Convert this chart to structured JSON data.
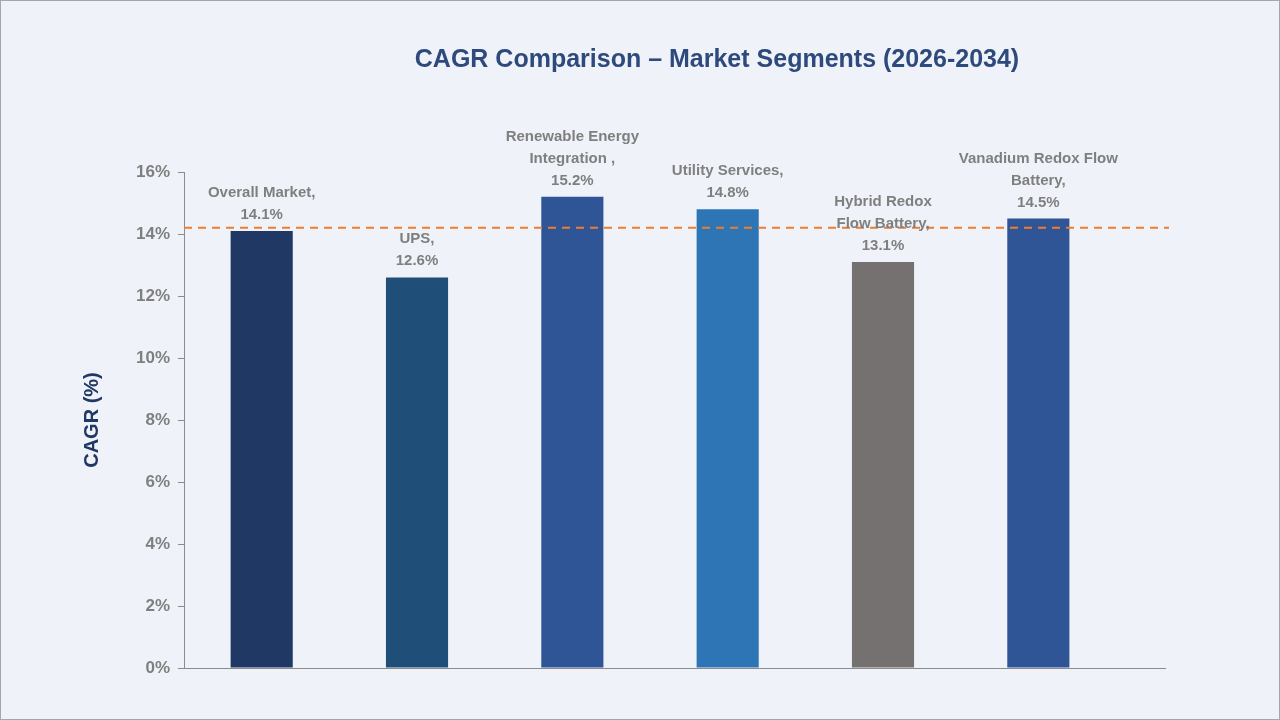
{
  "chart_data": {
    "type": "bar",
    "title": "CAGR Comparison – Market Segments (2026-2034)",
    "ylabel": "CAGR (%)",
    "categories": [
      null,
      null,
      null,
      null,
      null,
      null
    ],
    "values": [
      14.1,
      12.6,
      15.2,
      14.8,
      13.1,
      14.5
    ],
    "colors": [
      "#203864",
      "#1f4e79",
      "#2f5597",
      "#2e75b6",
      "#767171",
      "#2f5597"
    ],
    "value_labels": [
      "Overall Market,\n14.1%",
      "UPS,\n12.6%",
      "Renewable Energy\nIntegration ,\n15.2%",
      "Utility Services,\n14.8%",
      "Hybrid Redox\nFlow Battery,\n13.1%",
      "Vanadium Redox Flow\nBattery,\n14.5%"
    ],
    "ylim": [
      0,
      16
    ],
    "yticks": [
      {
        "value": 0,
        "label": "0%"
      },
      {
        "value": 2,
        "label": "2%"
      },
      {
        "value": 4,
        "label": "4%"
      },
      {
        "value": 6,
        "label": "6%"
      },
      {
        "value": 8,
        "label": "8%"
      },
      {
        "value": 10,
        "label": "10%"
      },
      {
        "value": 12,
        "label": "12%"
      },
      {
        "value": 14,
        "label": "14%"
      },
      {
        "value": 16,
        "label": "16%"
      }
    ],
    "ref_lines": [
      {
        "axis": "y",
        "value": 14.2,
        "color": "#ed7d31",
        "line_style": "dashed"
      }
    ],
    "tick_labels": "y",
    "legend": false
  }
}
